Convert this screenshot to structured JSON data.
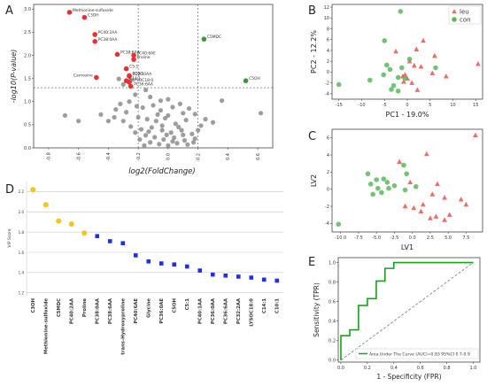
{
  "chart_data": [
    {
      "panel": "A",
      "type": "scatter",
      "xlabel": "log2(FoldChange)",
      "ylabel": "-log10(P-value)",
      "x_ticks": [
        "-0.8",
        "-0.6",
        "-0.4",
        "-0.2",
        "0.0",
        "0.2",
        "0.4",
        "0.6"
      ],
      "y_ticks": [
        "0.0",
        "0.5",
        "1.0",
        "1.5",
        "2.0",
        "2.5",
        "3.0"
      ],
      "xlim": [
        -0.9,
        0.7
      ],
      "ylim": [
        0,
        3.1
      ],
      "threshold_y": 1.3,
      "threshold_x": [
        -0.2,
        0.2
      ],
      "colors": {
        "up": "#3a9a3a",
        "down": "#e83030",
        "ns": "#8c8c8c"
      },
      "labeled_points": [
        {
          "label": "Methionine-sulfoxide",
          "x": -0.66,
          "y": 2.93,
          "group": "down"
        },
        {
          "label": "C3OH",
          "x": -0.56,
          "y": 2.82,
          "group": "down"
        },
        {
          "label": "PC40:2AA",
          "x": -0.49,
          "y": 2.45,
          "group": "down"
        },
        {
          "label": "PC38:0AA",
          "x": -0.49,
          "y": 2.3,
          "group": "down"
        },
        {
          "label": "PC38:6AA",
          "x": -0.34,
          "y": 2.02,
          "group": "down"
        },
        {
          "label": "PC40:6AE",
          "x": -0.23,
          "y": 2.0,
          "group": "down"
        },
        {
          "label": "Proline",
          "x": -0.23,
          "y": 1.91,
          "group": "down"
        },
        {
          "label": "C5:1",
          "x": -0.28,
          "y": 1.71,
          "group": "down"
        },
        {
          "label": "Carnosine",
          "x": -0.48,
          "y": 1.52,
          "group": "down"
        },
        {
          "label": "C10:1",
          "x": -0.26,
          "y": 1.56,
          "group": "down"
        },
        {
          "label": "PC36:0AA",
          "x": -0.26,
          "y": 1.55,
          "group": "down"
        },
        {
          "label": "C14:1",
          "x": -0.28,
          "y": 1.45,
          "group": "down"
        },
        {
          "label": "LYSOC18:0",
          "x": -0.26,
          "y": 1.42,
          "group": "down"
        },
        {
          "label": "PC36:6AA",
          "x": -0.25,
          "y": 1.33,
          "group": "down"
        },
        {
          "label": "C5MDC",
          "x": 0.24,
          "y": 2.35,
          "group": "up"
        },
        {
          "label": "C5OH",
          "x": 0.52,
          "y": 1.45,
          "group": "up"
        }
      ],
      "unlabeled_points": [
        [
          -0.33,
          1.49
        ],
        [
          -0.3,
          1.37
        ],
        [
          -0.25,
          1.47
        ],
        [
          -0.69,
          0.7
        ],
        [
          -0.45,
          0.72
        ],
        [
          -0.6,
          0.58
        ],
        [
          -0.4,
          0.58
        ],
        [
          -0.32,
          0.95
        ],
        [
          -0.26,
          1.0
        ],
        [
          -0.22,
          1.15
        ],
        [
          -0.15,
          1.25
        ],
        [
          -0.12,
          1.1
        ],
        [
          -0.05,
          1.02
        ],
        [
          0.0,
          1.05
        ],
        [
          -0.35,
          0.83
        ],
        [
          -0.28,
          0.77
        ],
        [
          -0.17,
          0.87
        ],
        [
          -0.1,
          0.92
        ],
        [
          -0.05,
          0.81
        ],
        [
          0.03,
          0.88
        ],
        [
          0.1,
          0.75
        ],
        [
          0.08,
          0.95
        ],
        [
          0.18,
          0.73
        ],
        [
          0.3,
          0.55
        ],
        [
          0.62,
          0.75
        ],
        [
          0.36,
          1.02
        ],
        [
          -0.2,
          0.66
        ],
        [
          -0.14,
          0.62
        ],
        [
          -0.08,
          0.58
        ],
        [
          -0.02,
          0.64
        ],
        [
          0.05,
          0.52
        ],
        [
          0.12,
          0.6
        ],
        [
          0.22,
          0.48
        ],
        [
          -0.25,
          0.46
        ],
        [
          -0.18,
          0.4
        ],
        [
          -0.11,
          0.44
        ],
        [
          -0.04,
          0.38
        ],
        [
          0.02,
          0.33
        ],
        [
          0.09,
          0.38
        ],
        [
          0.16,
          0.3
        ],
        [
          -0.22,
          0.33
        ],
        [
          -0.15,
          0.27
        ],
        [
          -0.09,
          0.23
        ],
        [
          -0.03,
          0.18
        ],
        [
          0.04,
          0.22
        ],
        [
          0.11,
          0.16
        ],
        [
          0.18,
          0.2
        ],
        [
          -0.12,
          0.12
        ],
        [
          -0.06,
          0.08
        ],
        [
          0.0,
          0.05
        ],
        [
          0.06,
          0.1
        ],
        [
          0.13,
          0.07
        ],
        [
          -0.19,
          0.18
        ],
        [
          -0.01,
          0.28
        ],
        [
          0.07,
          0.45
        ],
        [
          -0.3,
          0.58
        ],
        [
          0.25,
          0.62
        ],
        [
          -0.07,
          0.72
        ],
        [
          0.0,
          0.7
        ],
        [
          0.14,
          0.85
        ],
        [
          -0.21,
          0.9
        ],
        [
          0.2,
          0.38
        ],
        [
          -0.36,
          0.66
        ],
        [
          -0.13,
          0.35
        ],
        [
          0.03,
          0.14
        ],
        [
          0.1,
          0.28
        ],
        [
          -0.04,
          0.48
        ],
        [
          0.17,
          0.12
        ],
        [
          -0.16,
          0.05
        ]
      ]
    },
    {
      "panel": "B",
      "type": "scatter",
      "xlabel": "PC1 - 19.0%",
      "ylabel": "PC2 - 12.2%",
      "x_ticks": [
        "-15",
        "-10",
        "-5",
        "0",
        "5",
        "10",
        "15"
      ],
      "y_ticks": [
        "-4",
        "-2",
        "0",
        "2",
        "4",
        "6",
        "8",
        "10",
        "12"
      ],
      "xlim": [
        -16.5,
        16.5
      ],
      "ylim": [
        -5,
        12.5
      ],
      "legend": "top-right",
      "series": [
        {
          "name": "leu",
          "marker": "triangle",
          "color": "#e8534f",
          "points": [
            [
              -2.5,
              3.8
            ],
            [
              3.5,
              5.8
            ],
            [
              2,
              4.2
            ],
            [
              6,
              3
            ],
            [
              0.5,
              2
            ],
            [
              1.5,
              1.2
            ],
            [
              3,
              1
            ],
            [
              -0.5,
              -0.5
            ],
            [
              0,
              -1.2
            ],
            [
              1,
              -2
            ],
            [
              -0.8,
              -1.8
            ],
            [
              -1,
              -0.8
            ],
            [
              5.5,
              -0.2
            ],
            [
              2.2,
              -3.3
            ],
            [
              8.5,
              -0.8
            ],
            [
              15.5,
              1.5
            ]
          ]
        },
        {
          "name": "con",
          "marker": "circle",
          "color": "#5cb85c",
          "points": [
            [
              -1.5,
              11.2
            ],
            [
              -5,
              5.8
            ],
            [
              -4.5,
              1.3
            ],
            [
              -5.2,
              -0.5
            ],
            [
              -15,
              -2.3
            ],
            [
              -3,
              -2.5
            ],
            [
              -3.5,
              -3.2
            ],
            [
              -8.2,
              -1.5
            ],
            [
              -3.8,
              0.5
            ],
            [
              -2,
              -3.5
            ],
            [
              -1.2,
              0.8
            ],
            [
              0.5,
              2.4
            ],
            [
              -2,
              -1
            ],
            [
              6.2,
              0.8
            ],
            [
              -0.5,
              -1.2
            ]
          ]
        }
      ]
    },
    {
      "panel": "C",
      "type": "scatter",
      "xlabel": "LV1",
      "ylabel": "LV2",
      "x_ticks": [
        "-10.0",
        "-7.5",
        "-5.0",
        "-2.5",
        "0.0",
        "2.5",
        "5.0",
        "7.5"
      ],
      "y_ticks": [
        "-4",
        "-2",
        "0",
        "2",
        "4",
        "6"
      ],
      "xlim": [
        -11.2,
        9.8
      ],
      "ylim": [
        -5,
        7
      ],
      "series": [
        {
          "name": "leu",
          "marker": "triangle",
          "color": "#e8534f",
          "points": [
            [
              8.8,
              6.3
            ],
            [
              2,
              4.1
            ],
            [
              -1.8,
              3.2
            ],
            [
              -0.3,
              0.8
            ],
            [
              3.5,
              0.6
            ],
            [
              2.8,
              -0.6
            ],
            [
              4.5,
              -1
            ],
            [
              1.5,
              -1.8
            ],
            [
              6.8,
              -1.2
            ],
            [
              -1,
              -2
            ],
            [
              0.2,
              -2.2
            ],
            [
              1.2,
              -2.6
            ],
            [
              5.2,
              -3
            ],
            [
              3.3,
              -3.2
            ],
            [
              4.5,
              -3.6
            ],
            [
              2.5,
              -3.4
            ],
            [
              7.5,
              -1.8
            ]
          ]
        },
        {
          "name": "con",
          "marker": "circle",
          "color": "#5cb85c",
          "points": [
            [
              -10.3,
              -4.1
            ],
            [
              -6.2,
              1.8
            ],
            [
              -5,
              1.1
            ],
            [
              -4.8,
              0.1
            ],
            [
              -5.5,
              -0.6
            ],
            [
              -4,
              1.2
            ],
            [
              -3.5,
              0.8
            ],
            [
              -1.2,
              2.8
            ],
            [
              -0.8,
              1.8
            ],
            [
              -1,
              -0.1
            ],
            [
              0.5,
              0.3
            ],
            [
              -3.3,
              0.1
            ],
            [
              -5.8,
              0.6
            ],
            [
              -4.3,
              -0.4
            ],
            [
              -2.5,
              0.4
            ]
          ]
        }
      ]
    },
    {
      "panel": "D",
      "type": "scatter",
      "ylabel": "VIP Score",
      "y_ticks": [
        "1.2",
        "1.4",
        "1.6",
        "1.8",
        "2.0",
        "2.2"
      ],
      "ylim": [
        1.18,
        2.3
      ],
      "categories": [
        "C3OH",
        "Methionine-sulfoxide",
        "C5MDC",
        "PC40:2AA",
        "Proline",
        "PC38:0AA",
        "PC38:6AA",
        "trans-Hydroxyproline",
        "PC40:6AE",
        "Glycine",
        "PC36:0AE",
        "C5OH",
        "C5:1",
        "PC40:1AA",
        "PC36:0AA",
        "PC36:6AA",
        "PC32:2AA",
        "LYSOC18:0",
        "C14:1",
        "C10:1"
      ],
      "values": [
        2.22,
        2.07,
        1.91,
        1.88,
        1.79,
        1.76,
        1.71,
        1.69,
        1.57,
        1.51,
        1.49,
        1.48,
        1.46,
        1.42,
        1.38,
        1.37,
        1.36,
        1.35,
        1.33,
        1.32
      ],
      "point_colors": [
        "#f5c518",
        "#f5c518",
        "#f5c518",
        "#f5c518",
        "#f5c518",
        "#1f2fe8",
        "#1f2fe8",
        "#1f2fe8",
        "#1f2fe8",
        "#1f2fe8",
        "#1f2fe8",
        "#1f2fe8",
        "#1f2fe8",
        "#1f2fe8",
        "#1f2fe8",
        "#1f2fe8",
        "#1f2fe8",
        "#1f2fe8",
        "#1f2fe8",
        "#1f2fe8"
      ]
    },
    {
      "panel": "E",
      "type": "line",
      "xlabel": "1 - Specificity (FPR)",
      "ylabel": "Sensitivity (TPR)",
      "x_ticks": [
        "0.0",
        "0.2",
        "0.4",
        "0.6",
        "0.8",
        "1.0"
      ],
      "y_ticks": [
        "0.0",
        "0.2",
        "0.4",
        "0.6",
        "0.8",
        "1.0"
      ],
      "xlim": [
        -0.02,
        1.05
      ],
      "ylim": [
        -0.02,
        1.05
      ],
      "legend": "Area Under The Curve (AUC)=0.83 95%CI 0.7-0.9",
      "series": [
        {
          "name": "Area Under The Curve (AUC)=0.83 95%CI 0.7-0.9",
          "color": "#1e9e1e",
          "x": [
            0,
            0,
            0.067,
            0.067,
            0.133,
            0.133,
            0.2,
            0.2,
            0.267,
            0.267,
            0.333,
            0.333,
            0.4,
            0.4,
            1.0
          ],
          "y": [
            0,
            0.25,
            0.25,
            0.31,
            0.31,
            0.56,
            0.56,
            0.63,
            0.63,
            0.81,
            0.81,
            0.94,
            0.94,
            1.0,
            1.0
          ]
        }
      ],
      "diagonal": true
    }
  ]
}
